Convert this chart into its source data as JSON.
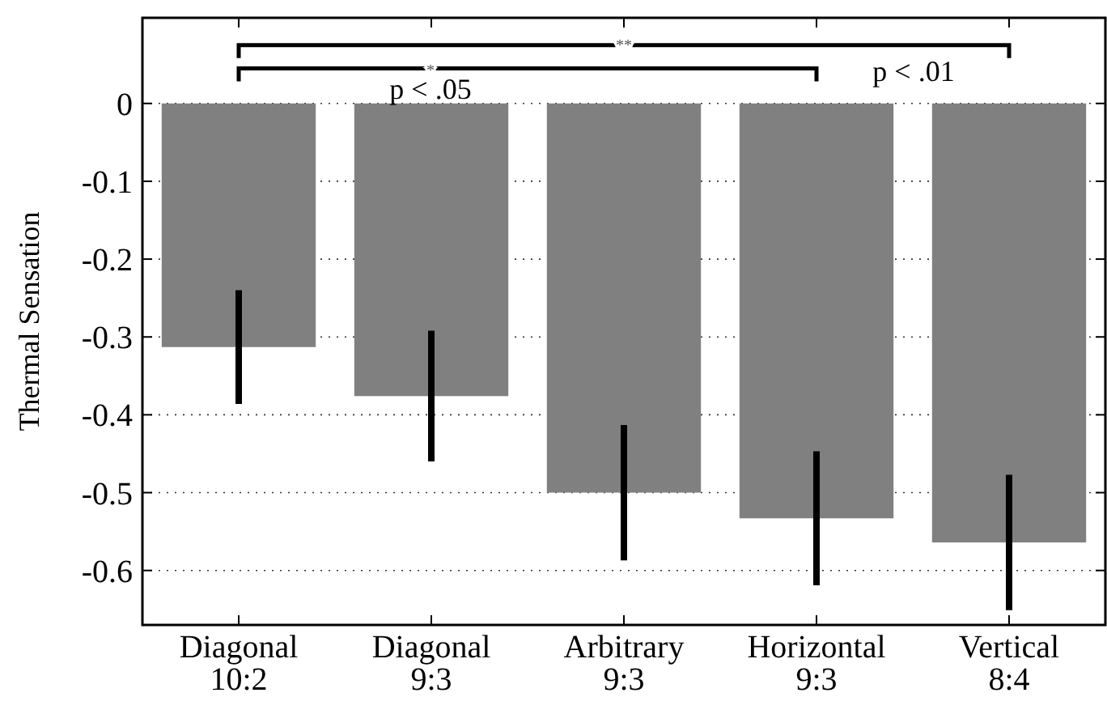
{
  "chart_data": {
    "type": "bar",
    "ylabel": "Thermal Sensation",
    "categories": [
      "Diagonal\n10:2",
      "Diagonal\n9:3",
      "Arbitrary\n9:3",
      "Horizontal\n9:3",
      "Vertical\n8:4"
    ],
    "values": [
      -0.313,
      -0.376,
      -0.5,
      -0.533,
      -0.564
    ],
    "errors": [
      0.073,
      0.084,
      0.087,
      0.086,
      0.087
    ],
    "color": "#808080",
    "ylim": [
      -0.67,
      0.11
    ],
    "yticks": [
      {
        "value": -0.6,
        "label": "-0.6"
      },
      {
        "value": -0.5,
        "label": "-0.5"
      },
      {
        "value": -0.4,
        "label": "-0.4"
      },
      {
        "value": -0.3,
        "label": "-0.3"
      },
      {
        "value": -0.2,
        "label": "-0.2"
      },
      {
        "value": -0.1,
        "label": "-0.1"
      },
      0
    ],
    "grid": "y",
    "annotations": [
      "**",
      "*",
      "p < .05",
      "p < .01"
    ]
  }
}
